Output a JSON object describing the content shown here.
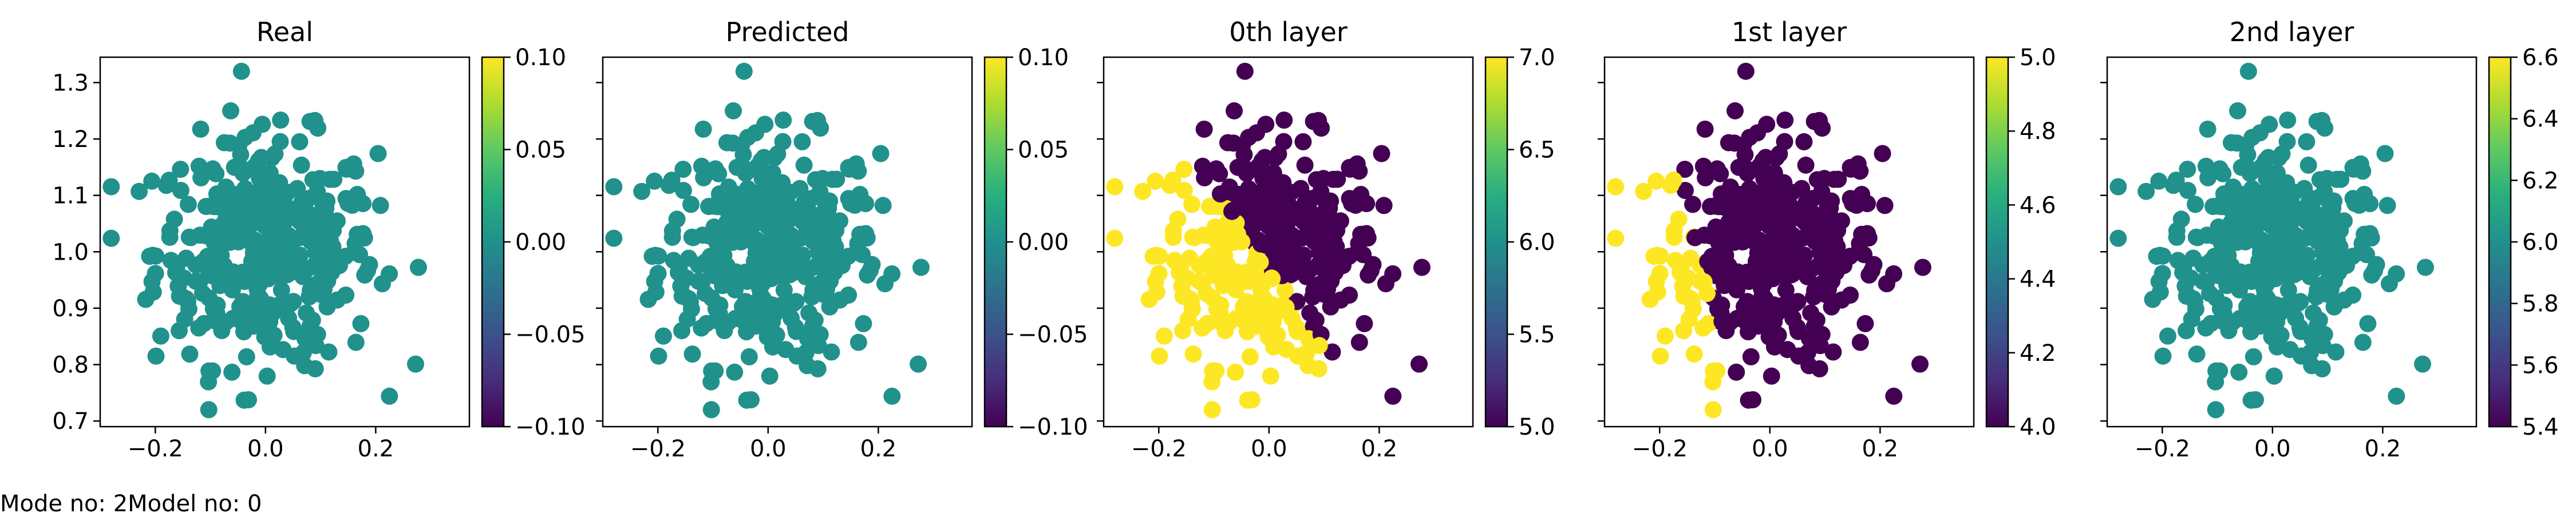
{
  "footer": {
    "mode_text": "Mode no: 2",
    "model_text": "Model no: 0"
  },
  "chart_data": [
    {
      "type": "scatter",
      "title": "Real",
      "xlabel": "",
      "ylabel": "",
      "xlim": [
        -0.3,
        0.37
      ],
      "ylim": [
        0.69,
        1.345
      ],
      "xticks": [
        -0.2,
        0.0,
        0.2
      ],
      "xtick_labels": [
        "−0.2",
        "0.0",
        "0.2"
      ],
      "yticks": [
        0.7,
        0.8,
        0.9,
        1.0,
        1.1,
        1.2,
        1.3
      ],
      "ytick_labels": [
        "0.7",
        "0.8",
        "0.9",
        "1.0",
        "1.1",
        "1.2",
        "1.3"
      ],
      "point_color": "#21918c",
      "point_count": 400,
      "colorbar": {
        "colormap": "viridis",
        "range": [
          -0.1,
          0.1
        ],
        "ticks": [
          -0.1,
          -0.05,
          0.0,
          0.05,
          0.1
        ],
        "tick_labels": [
          "−0.10",
          "−0.05",
          "0.00",
          "0.05",
          "0.10"
        ]
      }
    },
    {
      "type": "scatter",
      "title": "Predicted",
      "xlabel": "",
      "ylabel": "",
      "xlim": [
        -0.3,
        0.37
      ],
      "ylim": [
        0.69,
        1.345
      ],
      "xticks": [
        -0.2,
        0.0,
        0.2
      ],
      "xtick_labels": [
        "−0.2",
        "0.0",
        "0.2"
      ],
      "point_color": "#21918c",
      "point_count": 400,
      "colorbar": {
        "colormap": "viridis",
        "range": [
          -0.1,
          0.1
        ],
        "ticks": [
          -0.1,
          -0.05,
          0.0,
          0.05,
          0.1
        ],
        "tick_labels": [
          "−0.10",
          "−0.05",
          "0.00",
          "0.05",
          "0.10"
        ]
      }
    },
    {
      "type": "scatter",
      "title": "0th layer",
      "xlabel": "",
      "ylabel": "",
      "xlim": [
        -0.3,
        0.37
      ],
      "ylim": [
        0.69,
        1.345
      ],
      "xticks": [
        -0.2,
        0.0,
        0.2
      ],
      "xtick_labels": [
        "−0.2",
        "0.0",
        "0.2"
      ],
      "colors": {
        "high": "#fde725",
        "low": "#440154"
      },
      "classes": [
        7,
        5
      ],
      "point_count": 400,
      "colorbar": {
        "colormap": "viridis",
        "range": [
          5.0,
          7.0
        ],
        "ticks": [
          5.0,
          5.5,
          6.0,
          6.5,
          7.0
        ],
        "tick_labels": [
          "5.0",
          "5.5",
          "6.0",
          "6.5",
          "7.0"
        ]
      }
    },
    {
      "type": "scatter",
      "title": "1st layer",
      "xlabel": "",
      "ylabel": "",
      "xlim": [
        -0.3,
        0.37
      ],
      "ylim": [
        0.69,
        1.345
      ],
      "xticks": [
        -0.2,
        0.0,
        0.2
      ],
      "xtick_labels": [
        "−0.2",
        "0.0",
        "0.2"
      ],
      "colors": {
        "high": "#fde725",
        "low": "#440154"
      },
      "classes": [
        5,
        4
      ],
      "point_count": 400,
      "colorbar": {
        "colormap": "viridis",
        "range": [
          4.0,
          5.0
        ],
        "ticks": [
          4.0,
          4.2,
          4.4,
          4.6,
          4.8,
          5.0
        ],
        "tick_labels": [
          "4.0",
          "4.2",
          "4.4",
          "4.6",
          "4.8",
          "5.0"
        ]
      }
    },
    {
      "type": "scatter",
      "title": "2nd layer",
      "xlabel": "",
      "ylabel": "",
      "xlim": [
        -0.3,
        0.37
      ],
      "ylim": [
        0.69,
        1.345
      ],
      "xticks": [
        -0.2,
        0.0,
        0.2
      ],
      "xtick_labels": [
        "−0.2",
        "0.0",
        "0.2"
      ],
      "point_color": "#21918c",
      "point_count": 400,
      "colorbar": {
        "colormap": "viridis",
        "range": [
          5.4,
          6.6
        ],
        "ticks": [
          5.4,
          5.6,
          5.8,
          6.0,
          6.2,
          6.4,
          6.6
        ],
        "tick_labels": [
          "5.4",
          "5.6",
          "5.8",
          "6.0",
          "6.2",
          "6.4",
          "6.6"
        ]
      }
    }
  ]
}
